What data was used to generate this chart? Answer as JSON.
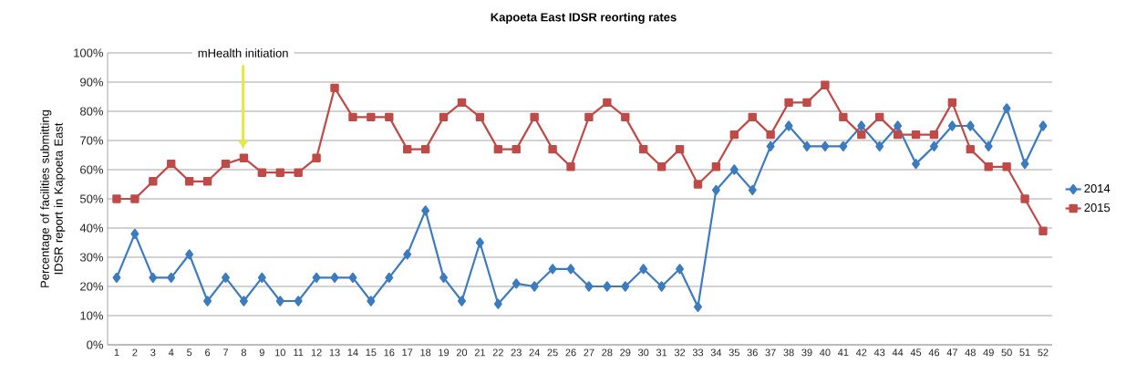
{
  "chart_data": {
    "type": "line",
    "title": "Kapoeta East IDSR reorting rates",
    "ylabel": "Percentage of facilities submitting IDSR report in Kapoeta East",
    "categories": [
      "1",
      "2",
      "3",
      "4",
      "5",
      "6",
      "7",
      "8",
      "9",
      "10",
      "11",
      "12",
      "13",
      "14",
      "15",
      "16",
      "17",
      "18",
      "19",
      "20",
      "21",
      "22",
      "23",
      "24",
      "25",
      "26",
      "27",
      "28",
      "29",
      "30",
      "31",
      "32",
      "33",
      "34",
      "35",
      "36",
      "37",
      "38",
      "39",
      "40",
      "41",
      "42",
      "43",
      "44",
      "45",
      "46",
      "47",
      "48",
      "49",
      "50",
      "51",
      "52"
    ],
    "series": [
      {
        "name": "2014",
        "color": "#3d7bbf",
        "marker": "diamond",
        "values": [
          23,
          38,
          23,
          23,
          31,
          15,
          23,
          15,
          23,
          15,
          15,
          23,
          23,
          23,
          15,
          23,
          31,
          46,
          23,
          15,
          35,
          14,
          21,
          20,
          26,
          26,
          20,
          20,
          20,
          26,
          20,
          26,
          13,
          53,
          60,
          53,
          68,
          75,
          68,
          68,
          68,
          75,
          68,
          75,
          62,
          68,
          75,
          75,
          68,
          81,
          62,
          75
        ]
      },
      {
        "name": "2015",
        "color": "#be4b48",
        "marker": "square",
        "values": [
          50,
          50,
          56,
          62,
          56,
          56,
          62,
          64,
          59,
          59,
          59,
          64,
          88,
          78,
          78,
          78,
          67,
          67,
          78,
          83,
          78,
          67,
          67,
          78,
          67,
          61,
          78,
          83,
          78,
          67,
          61,
          67,
          55,
          61,
          72,
          78,
          72,
          83,
          83,
          89,
          78,
          72,
          78,
          72,
          72,
          72,
          83,
          67,
          61,
          61,
          50,
          39
        ]
      }
    ],
    "ylim": [
      0,
      100
    ],
    "yticks": [
      {
        "value": 0,
        "label": "0%"
      },
      {
        "value": 10,
        "label": "10%"
      },
      {
        "value": 20,
        "label": "20%"
      },
      {
        "value": 30,
        "label": "30%"
      },
      {
        "value": 40,
        "label": "40%"
      },
      {
        "value": 50,
        "label": "50%"
      },
      {
        "value": 60,
        "label": "60%"
      },
      {
        "value": 70,
        "label": "70%"
      },
      {
        "value": 80,
        "label": "80%"
      },
      {
        "value": 90,
        "label": "90%"
      },
      {
        "value": 100,
        "label": "100%"
      }
    ],
    "grid": "y",
    "legend": "right",
    "line_style": "solid",
    "annotations": [
      "mHealth initiation"
    ]
  }
}
